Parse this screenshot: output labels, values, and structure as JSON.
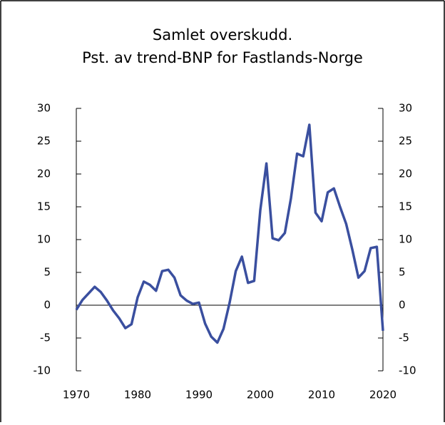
{
  "chart_data": {
    "type": "line",
    "title": [
      "Samlet overskudd.",
      "Pst. av trend-BNP for Fastlands-Norge"
    ],
    "x": [
      1970,
      1971,
      1972,
      1973,
      1974,
      1975,
      1976,
      1977,
      1978,
      1979,
      1980,
      1981,
      1982,
      1983,
      1984,
      1985,
      1986,
      1987,
      1988,
      1989,
      1990,
      1991,
      1992,
      1993,
      1994,
      1995,
      1996,
      1997,
      1998,
      1999,
      2000,
      2001,
      2002,
      2003,
      2004,
      2005,
      2006,
      2007,
      2008,
      2009,
      2010,
      2011,
      2012,
      2013,
      2014,
      2015,
      2016,
      2017,
      2018,
      2019,
      2020
    ],
    "series": [
      {
        "color": "#3a4f9f",
        "values": [
          -0.7,
          0.8,
          1.8,
          2.8,
          2.0,
          0.7,
          -0.8,
          -2.0,
          -3.5,
          -2.9,
          1.2,
          3.6,
          3.1,
          2.2,
          5.2,
          5.4,
          4.2,
          1.5,
          0.7,
          0.2,
          0.4,
          -2.8,
          -4.8,
          -5.7,
          -3.6,
          0.4,
          5.2,
          7.4,
          3.4,
          3.7,
          14.5,
          21.6,
          10.2,
          9.9,
          11.0,
          16.3,
          23.1,
          22.7,
          27.5,
          14.1,
          12.8,
          17.2,
          17.8,
          15.0,
          12.4,
          8.5,
          4.2,
          5.2,
          8.7,
          8.9,
          -3.9
        ]
      }
    ],
    "xlim": [
      1970,
      2020
    ],
    "xticks": [
      1970,
      1980,
      1990,
      2000,
      2010,
      2020
    ],
    "ylim": [
      -10,
      30
    ],
    "yticks": [
      -10,
      -5,
      0,
      5,
      10,
      15,
      20,
      25,
      30
    ],
    "y2lim": [
      -10,
      30
    ],
    "y2ticks": [
      -10,
      -5,
      0,
      5,
      10,
      15,
      20,
      25,
      30
    ]
  }
}
